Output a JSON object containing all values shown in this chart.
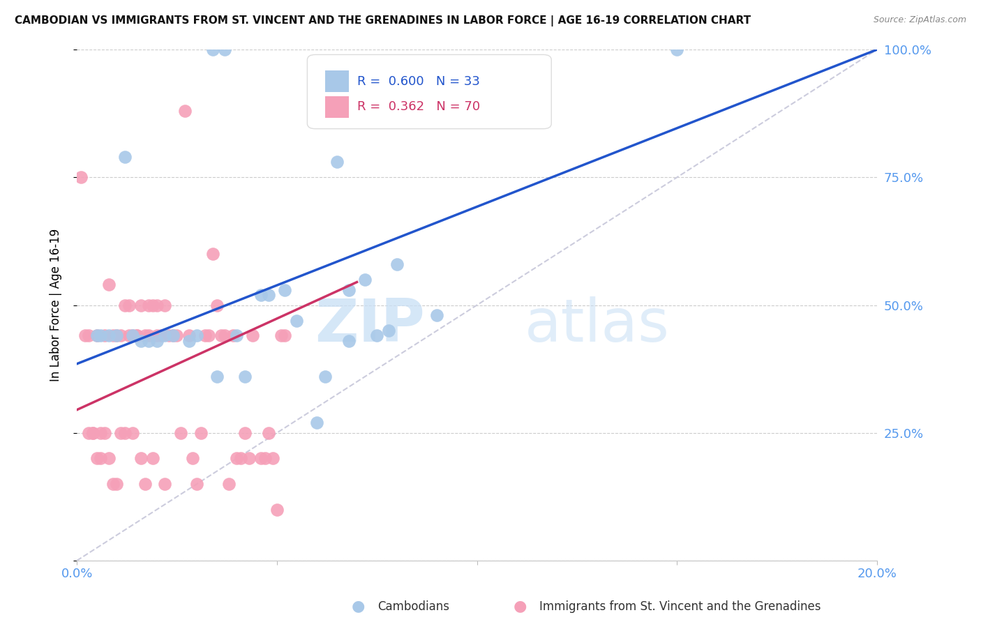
{
  "title": "CAMBODIAN VS IMMIGRANTS FROM ST. VINCENT AND THE GRENADINES IN LABOR FORCE | AGE 16-19 CORRELATION CHART",
  "source": "Source: ZipAtlas.com",
  "ylabel": "In Labor Force | Age 16-19",
  "watermark_zip": "ZIP",
  "watermark_atlas": "atlas",
  "xlim": [
    0.0,
    0.2
  ],
  "ylim": [
    0.0,
    1.0
  ],
  "blue_R": 0.6,
  "blue_N": 33,
  "pink_R": 0.362,
  "pink_N": 70,
  "blue_dot_color": "#a8c8e8",
  "pink_dot_color": "#f5a0b8",
  "blue_line_color": "#2255cc",
  "pink_line_color": "#cc3366",
  "diag_color": "#ccccdd",
  "tick_color": "#5599ee",
  "legend_blue_label": "Cambodians",
  "legend_pink_label": "Immigrants from St. Vincent and the Grenadines",
  "blue_scatter_x": [
    0.034,
    0.037,
    0.012,
    0.016,
    0.02,
    0.024,
    0.03,
    0.04,
    0.046,
    0.052,
    0.06,
    0.065,
    0.068,
    0.072,
    0.078,
    0.09,
    0.15,
    0.006,
    0.008,
    0.01,
    0.014,
    0.018,
    0.028,
    0.035,
    0.042,
    0.048,
    0.055,
    0.062,
    0.068,
    0.075,
    0.08,
    0.005,
    0.022
  ],
  "blue_scatter_y": [
    1.0,
    1.0,
    0.79,
    0.43,
    0.43,
    0.44,
    0.44,
    0.44,
    0.52,
    0.53,
    0.27,
    0.78,
    0.43,
    0.55,
    0.45,
    0.48,
    1.0,
    0.44,
    0.44,
    0.44,
    0.44,
    0.43,
    0.43,
    0.36,
    0.36,
    0.52,
    0.47,
    0.36,
    0.53,
    0.44,
    0.58,
    0.44,
    0.44
  ],
  "pink_scatter_x": [
    0.001,
    0.002,
    0.003,
    0.004,
    0.005,
    0.006,
    0.007,
    0.008,
    0.009,
    0.01,
    0.011,
    0.012,
    0.013,
    0.014,
    0.015,
    0.016,
    0.017,
    0.018,
    0.019,
    0.02,
    0.021,
    0.022,
    0.003,
    0.004,
    0.006,
    0.007,
    0.009,
    0.01,
    0.012,
    0.013,
    0.015,
    0.016,
    0.018,
    0.02,
    0.022,
    0.024,
    0.025,
    0.026,
    0.028,
    0.03,
    0.031,
    0.032,
    0.033,
    0.035,
    0.037,
    0.038,
    0.04,
    0.042,
    0.044,
    0.046,
    0.048,
    0.05,
    0.052,
    0.005,
    0.008,
    0.011,
    0.014,
    0.017,
    0.019,
    0.023,
    0.027,
    0.029,
    0.034,
    0.036,
    0.039,
    0.041,
    0.043,
    0.047,
    0.049,
    0.051
  ],
  "pink_scatter_y": [
    0.75,
    0.44,
    0.44,
    0.25,
    0.2,
    0.25,
    0.25,
    0.2,
    0.15,
    0.44,
    0.44,
    0.5,
    0.5,
    0.25,
    0.44,
    0.2,
    0.44,
    0.44,
    0.5,
    0.5,
    0.44,
    0.15,
    0.25,
    0.25,
    0.2,
    0.44,
    0.44,
    0.15,
    0.25,
    0.44,
    0.44,
    0.5,
    0.5,
    0.44,
    0.5,
    0.44,
    0.44,
    0.25,
    0.44,
    0.15,
    0.25,
    0.44,
    0.44,
    0.5,
    0.44,
    0.15,
    0.2,
    0.25,
    0.44,
    0.2,
    0.25,
    0.1,
    0.44,
    0.44,
    0.54,
    0.25,
    0.44,
    0.15,
    0.2,
    0.44,
    0.88,
    0.2,
    0.6,
    0.44,
    0.44,
    0.2,
    0.2,
    0.2,
    0.2,
    0.44
  ],
  "blue_line_x0": 0.0,
  "blue_line_y0": 0.385,
  "blue_line_x1": 0.2,
  "blue_line_y1": 1.0,
  "pink_line_x0": 0.0,
  "pink_line_y0": 0.295,
  "pink_line_x1": 0.07,
  "pink_line_y1": 0.545
}
